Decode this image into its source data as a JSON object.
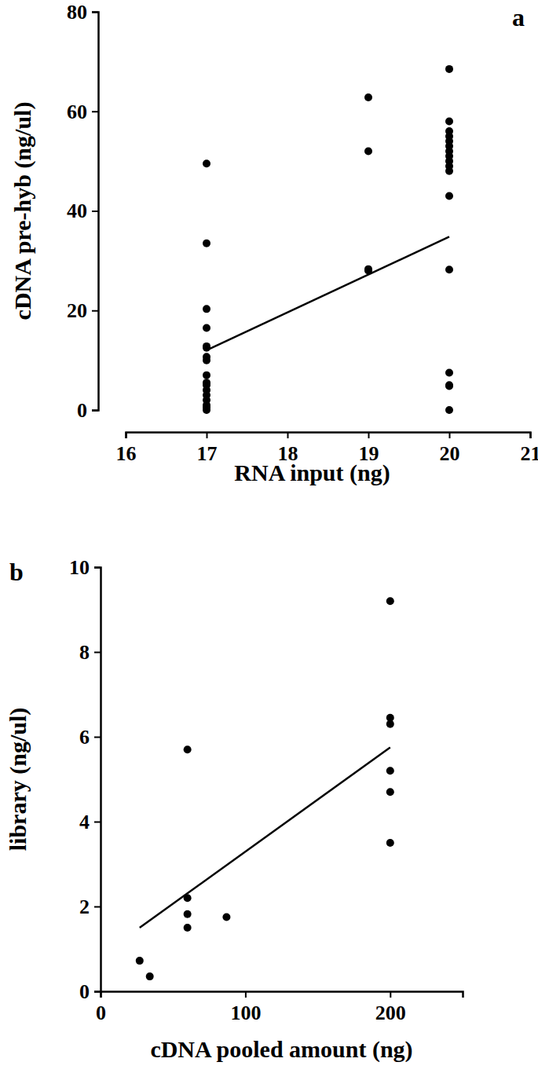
{
  "chart_data": [
    {
      "type": "scatter",
      "title": "a",
      "x_label": "RNA input (ng)",
      "y_label": "cDNA pre-hyb (ng/ul)",
      "xlim": [
        16,
        21
      ],
      "xticks": [
        16,
        17,
        18,
        19,
        20,
        21
      ],
      "ylim": [
        0,
        80
      ],
      "yticks": [
        0,
        20,
        40,
        60,
        80
      ],
      "series": [
        {
          "type": "scatter",
          "marker": "circle",
          "color": "#000000",
          "x": [
            17,
            17,
            17,
            17,
            17,
            17,
            17,
            17,
            17,
            17,
            17,
            17,
            17,
            17,
            17,
            17,
            17,
            19,
            19,
            19,
            19,
            20,
            20,
            20,
            20,
            20,
            20,
            20,
            20,
            20,
            20,
            20,
            20,
            20,
            20,
            20,
            20,
            20
          ],
          "values": [
            49.5,
            33.5,
            20.3,
            16.5,
            12.8,
            12.5,
            10.7,
            10,
            7,
            5.5,
            5,
            4,
            3,
            2,
            1,
            0.5,
            0,
            62.8,
            52,
            28.3,
            28,
            68.5,
            58,
            56,
            55,
            54,
            53,
            52,
            51,
            50,
            49,
            48,
            43,
            28.2,
            7.5,
            5,
            4.8,
            0
          ]
        },
        {
          "type": "line",
          "line_style": "solid",
          "color": "#000000",
          "x": [
            17,
            20
          ],
          "values": [
            12,
            34.8
          ]
        }
      ]
    },
    {
      "type": "scatter",
      "title": "b",
      "x_label": "cDNA pooled amount (ng)",
      "y_label": "library (ng/ul)",
      "xlim": [
        0,
        250
      ],
      "xticks": [
        0,
        100,
        200
      ],
      "ylim": [
        0,
        10
      ],
      "yticks": [
        0,
        2,
        4,
        6,
        8,
        10
      ],
      "series": [
        {
          "type": "scatter",
          "marker": "circle",
          "color": "#000000",
          "x": [
            27,
            34,
            60,
            60,
            60,
            60,
            87,
            200,
            200,
            200,
            200,
            200,
            200
          ],
          "values": [
            0.72,
            0.35,
            5.7,
            2.2,
            1.82,
            1.5,
            1.75,
            9.2,
            6.45,
            6.3,
            5.2,
            4.7,
            3.5
          ]
        },
        {
          "type": "line",
          "line_style": "solid",
          "color": "#000000",
          "x": [
            27,
            200
          ],
          "values": [
            1.5,
            5.75
          ]
        }
      ]
    }
  ]
}
